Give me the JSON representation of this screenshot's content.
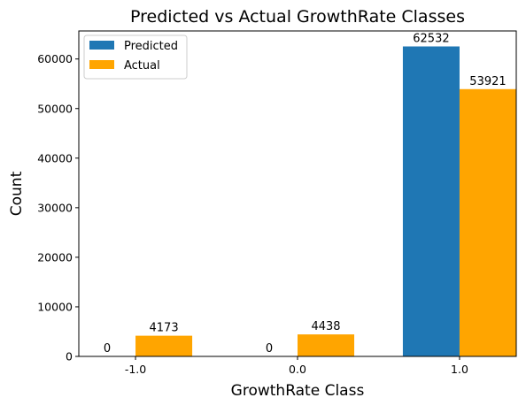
{
  "chart_data": {
    "type": "bar",
    "title": "Predicted vs Actual GrowthRate Classes",
    "xlabel": "GrowthRate Class",
    "ylabel": "Count",
    "categories": [
      "-1.0",
      "0.0",
      "1.0"
    ],
    "series": [
      {
        "name": "Predicted",
        "values": [
          0,
          0,
          62532
        ],
        "color": "#1f77b4"
      },
      {
        "name": "Actual",
        "values": [
          4173,
          4438,
          53921
        ],
        "color": "#ffa500"
      }
    ],
    "ylim": [
      0,
      65656
    ],
    "yticks": [
      "0",
      "10000",
      "20000",
      "30000",
      "40000",
      "50000",
      "60000"
    ],
    "bar_labels": true,
    "grid": false,
    "legend_position": "upper-left"
  }
}
